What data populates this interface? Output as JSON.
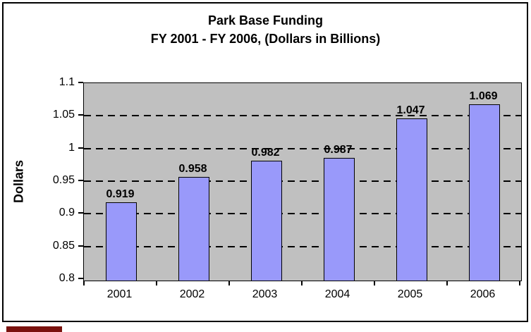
{
  "chart": {
    "title_line1": "Park Base Funding",
    "title_line2": "FY 2001 - FY 2006, (Dollars in Billions)",
    "y_axis_title": "Dollars"
  },
  "chart_data": {
    "type": "bar",
    "title": "Park Base Funding",
    "subtitle": "FY 2001 - FY 2006, (Dollars in Billions)",
    "categories": [
      "2001",
      "2002",
      "2003",
      "2004",
      "2005",
      "2006"
    ],
    "values": [
      0.919,
      0.958,
      0.982,
      0.987,
      1.047,
      1.069
    ],
    "value_labels": [
      "0.919",
      "0.958",
      "0.982",
      "0.987",
      "1.047",
      "1.069"
    ],
    "xlabel": "",
    "ylabel": "Dollars",
    "ylim": [
      0.8,
      1.1
    ],
    "ytick_values": [
      0.8,
      0.85,
      0.9,
      0.95,
      1.0,
      1.05,
      1.1
    ],
    "ytick_labels": [
      "0.8",
      "0.85",
      "0.9",
      "0.95",
      "1",
      "1.05",
      "1.1"
    ],
    "gridline_values": [
      0.85,
      0.9,
      0.95,
      1.0,
      1.05
    ],
    "grid": "horizontal-dashed",
    "legend": "none",
    "colors": {
      "bar_fill": "#9999fa",
      "bar_border": "#000000",
      "plot_background": "#c0c0c0",
      "frame_border": "#000000",
      "text": "#000000",
      "bottom_left_fragment": "#7a120e"
    }
  }
}
